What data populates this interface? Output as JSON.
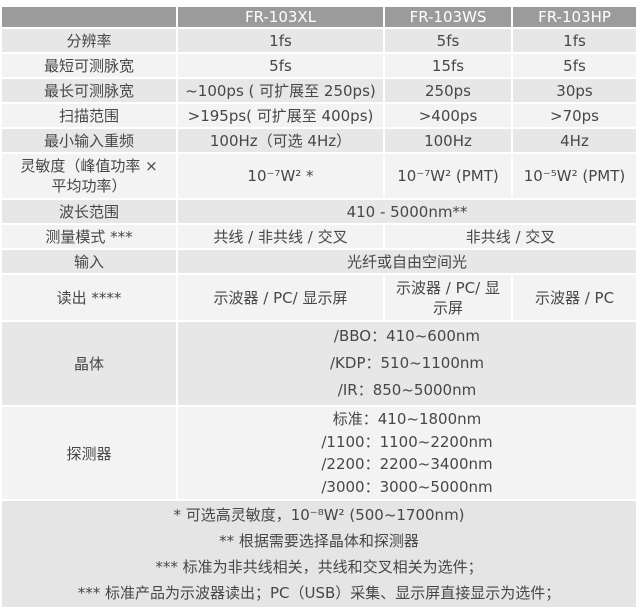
{
  "table": {
    "header": {
      "col1": "",
      "col2": "FR-103XL",
      "col3": "FR-103WS",
      "col4": "FR-103HP"
    },
    "rows": {
      "resolution": {
        "label": "分辨率",
        "xl": "1fs",
        "ws": "5fs",
        "hp": "1fs"
      },
      "min_pulse": {
        "label": "最短可测脉宽",
        "xl": "5fs",
        "ws": "15fs",
        "hp": "5fs"
      },
      "max_pulse": {
        "label": "最长可测脉宽",
        "xl": "~100ps ( 可扩展至 250ps)",
        "ws": "250ps",
        "hp": "30ps"
      },
      "scan_range": {
        "label": "扫描范围",
        "xl": ">195ps( 可扩展至 400ps)",
        "ws": ">400ps",
        "hp": ">70ps"
      },
      "min_rep": {
        "label": "最小输入重频",
        "xl": "100Hz（可选 4Hz）",
        "ws": "100Hz",
        "hp": "4Hz"
      },
      "sensitivity": {
        "label": "灵敏度（峰值功率 ×\n平均功率）",
        "xl": "10⁻⁷W² *",
        "ws": "10⁻⁷W² (PMT)",
        "hp": "10⁻⁵W² (PMT)"
      },
      "wavelength": {
        "label": "波长范围",
        "all": "410 - 5000nm**"
      },
      "measure_mode": {
        "label": "测量模式 ***",
        "xl": "共线 / 非共线 / 交叉",
        "ws_hp": "非共线 / 交叉"
      },
      "input": {
        "label": "输入",
        "all": "光纤或自由空间光"
      },
      "readout": {
        "label": "读出 ****",
        "xl": "示波器 / PC/ 显示屏",
        "ws": "示波器 / PC/ 显\n示屏",
        "hp": "示波器 / PC"
      },
      "crystal": {
        "label": "晶体",
        "lines": [
          "/BBO：410~600nm",
          "/KDP：510~1100nm",
          "/IR：850~5000nm"
        ]
      },
      "detector": {
        "label": "探测器",
        "lines": [
          "标准：410~1800nm",
          "/1100：1100~2200nm",
          "/2200：2200~3400nm",
          "/3000：3000~5000nm"
        ]
      }
    },
    "footnotes": [
      "* 可选高灵敏度，10⁻⁸W² (500~1700nm)",
      "** 根据需要选择晶体和探测器",
      "*** 标准为非共线相关，共线和交叉相关为选件；",
      "*** 标准产品为示波器读出；PC（USB）采集、显示屏直接显示为选件；"
    ]
  },
  "colors": {
    "header_bg": "#9b9b9b",
    "header_text": "#ffffff",
    "row_odd_bg": "#e7e7e7",
    "row_even_bg": "#f3f3f3",
    "footer_bg": "#e5e5e5",
    "body_text": "#474747",
    "grid": "#ffffff"
  }
}
